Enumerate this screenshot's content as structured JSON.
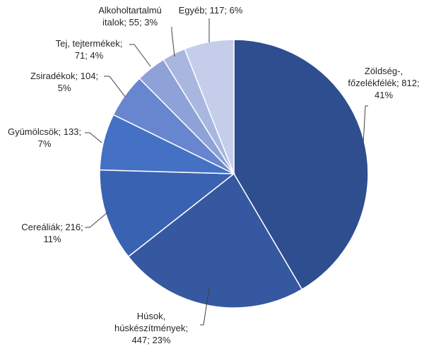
{
  "chart_data": {
    "type": "pie",
    "title": "",
    "start_angle_deg": 0,
    "direction": "clockwise",
    "slices": [
      {
        "label_lines": [
          "Zöldség-,",
          "főzelékfélék; 812;",
          "41%"
        ],
        "value": 812,
        "percent": 41,
        "color": "#2e4e8f"
      },
      {
        "label_lines": [
          "Húsok,",
          "húskészítmények;",
          "447; 23%"
        ],
        "value": 447,
        "percent": 23,
        "color": "#3558a0"
      },
      {
        "label_lines": [
          "Cereáliák; 216;",
          "11%"
        ],
        "value": 216,
        "percent": 11,
        "color": "#3a62b2"
      },
      {
        "label_lines": [
          "Gyümölcsök; 133;",
          "7%"
        ],
        "value": 133,
        "percent": 7,
        "color": "#4471c4"
      },
      {
        "label_lines": [
          "Zsiradékok; 104;",
          "5%"
        ],
        "value": 104,
        "percent": 5,
        "color": "#6885cf"
      },
      {
        "label_lines": [
          "Tej, tejtermékek;",
          "71; 4%"
        ],
        "value": 71,
        "percent": 4,
        "color": "#8ea2d8"
      },
      {
        "label_lines": [
          "Alkoholtartalmú",
          "italok; 55; 3%"
        ],
        "value": 55,
        "percent": 3,
        "color": "#a9b7e0"
      },
      {
        "label_lines": [
          "Egyéb; 117; 6%"
        ],
        "value": 117,
        "percent": 6,
        "color": "#c5cdea"
      }
    ]
  }
}
